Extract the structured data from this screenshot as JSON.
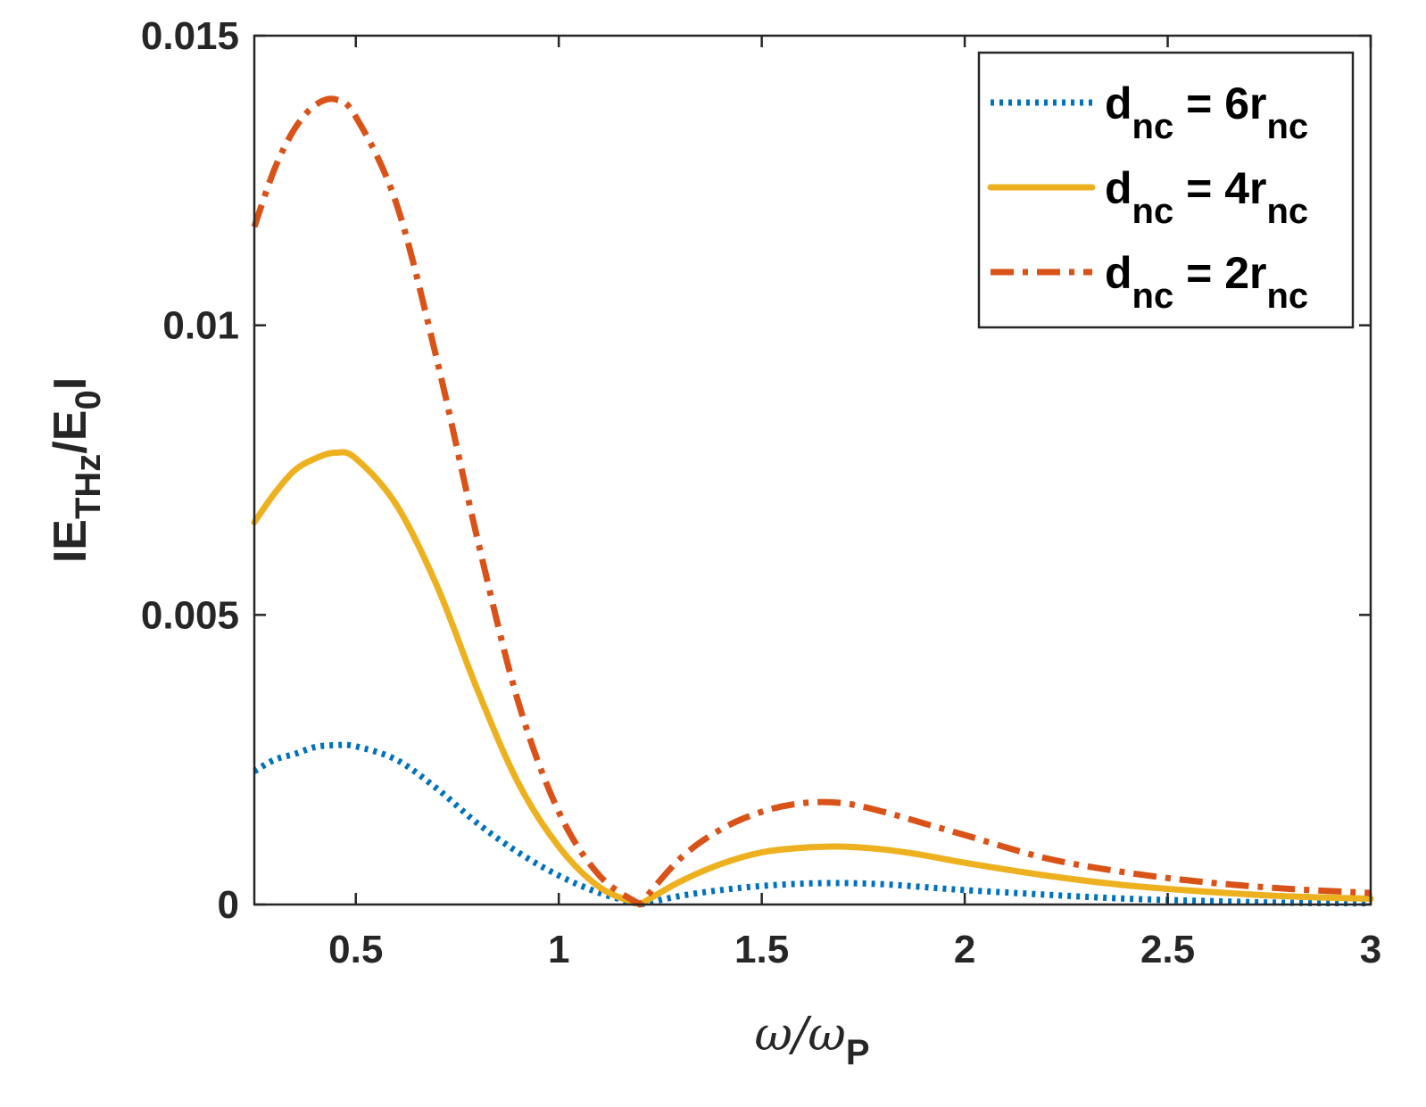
{
  "chart_data": {
    "type": "line",
    "xlabel": {
      "main": "ω/ω",
      "sub": "P"
    },
    "ylabel": {
      "pre": "IE",
      "sub1": "THz",
      "mid": "/E",
      "sub2": "0",
      "post": "I"
    },
    "xlim": [
      0.25,
      3
    ],
    "ylim": [
      0,
      0.015
    ],
    "xticks": [
      0.5,
      1,
      1.5,
      2,
      2.5,
      3
    ],
    "xtick_labels": [
      "0.5",
      "1",
      "1.5",
      "2",
      "2.5",
      "3"
    ],
    "yticks": [
      0,
      0.005,
      0.01,
      0.015
    ],
    "ytick_labels": [
      "0",
      "0.005",
      "0.01",
      "0.015"
    ],
    "grid": false,
    "legend_position": "top-right",
    "series": [
      {
        "name": "d_nc = 6r_nc",
        "legend": {
          "d": "d",
          "sub1": "nc",
          "mid": " = 6r",
          "sub2": "nc"
        },
        "color": "#0072BD",
        "style": "dotted",
        "x": [
          0.25,
          0.3,
          0.35,
          0.4,
          0.45,
          0.5,
          0.6,
          0.7,
          0.8,
          0.9,
          1.0,
          1.1,
          1.2,
          1.3,
          1.4,
          1.5,
          1.6,
          1.7,
          1.8,
          1.9,
          2.0,
          2.2,
          2.4,
          2.6,
          2.8,
          3.0
        ],
        "values": [
          0.0023,
          0.0025,
          0.0026,
          0.00272,
          0.00275,
          0.00273,
          0.0025,
          0.002,
          0.0014,
          0.0009,
          0.0005,
          0.0002,
          0.0,
          0.00015,
          0.00025,
          0.00032,
          0.00036,
          0.00037,
          0.00035,
          0.0003,
          0.00025,
          0.00017,
          0.0001,
          6e-05,
          3e-05,
          2e-05
        ]
      },
      {
        "name": "d_nc = 4r_nc",
        "legend": {
          "d": "d",
          "sub1": "nc",
          "mid": " = 4r",
          "sub2": "nc"
        },
        "color": "#EDB120",
        "style": "solid",
        "x": [
          0.25,
          0.3,
          0.35,
          0.4,
          0.45,
          0.5,
          0.6,
          0.7,
          0.8,
          0.9,
          1.0,
          1.1,
          1.2,
          1.3,
          1.4,
          1.5,
          1.6,
          1.7,
          1.8,
          1.9,
          2.0,
          2.2,
          2.4,
          2.6,
          2.8,
          3.0
        ],
        "values": [
          0.0066,
          0.0071,
          0.0075,
          0.0077,
          0.0078,
          0.0077,
          0.0069,
          0.0055,
          0.0037,
          0.0021,
          0.001,
          0.0003,
          0.0,
          0.0004,
          0.0007,
          0.0009,
          0.00098,
          0.001,
          0.00095,
          0.00085,
          0.00072,
          0.0005,
          0.00033,
          0.00022,
          0.00014,
          0.0001
        ]
      },
      {
        "name": "d_nc = 2r_nc",
        "legend": {
          "d": "d",
          "sub1": "nc",
          "mid": " = 2r",
          "sub2": "nc"
        },
        "color": "#D95319",
        "style": "dashdot",
        "x": [
          0.25,
          0.3,
          0.35,
          0.4,
          0.45,
          0.5,
          0.6,
          0.7,
          0.8,
          0.9,
          1.0,
          1.1,
          1.2,
          1.3,
          1.4,
          1.5,
          1.6,
          1.7,
          1.8,
          1.9,
          2.0,
          2.2,
          2.4,
          2.6,
          2.8,
          3.0
        ],
        "values": [
          0.0117,
          0.0127,
          0.0134,
          0.0138,
          0.0139,
          0.0136,
          0.0121,
          0.0094,
          0.0063,
          0.0035,
          0.0016,
          0.0005,
          0.0,
          0.0008,
          0.0013,
          0.0016,
          0.00175,
          0.00175,
          0.0016,
          0.0014,
          0.0012,
          0.0008,
          0.00055,
          0.00038,
          0.00027,
          0.0002
        ]
      }
    ]
  }
}
